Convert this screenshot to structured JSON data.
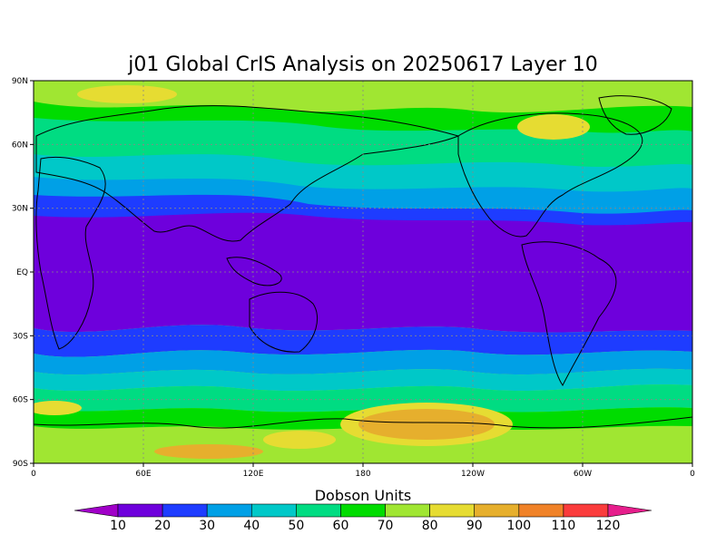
{
  "title": "j01 Global CrIS Analysis on 20250617 Layer 10",
  "map": {
    "lat_ticks": [
      "90N",
      "60N",
      "30N",
      "EQ",
      "30S",
      "60S",
      "90S"
    ],
    "lon_ticks": [
      "0",
      "60E",
      "120E",
      "180",
      "120W",
      "60W",
      "0"
    ],
    "grid": true
  },
  "colorbar": {
    "title": "Dobson Units",
    "labels": [
      "10",
      "20",
      "30",
      "40",
      "50",
      "60",
      "70",
      "80",
      "90",
      "100",
      "110",
      "120"
    ],
    "colors": [
      "#a000c8",
      "#6e00dc",
      "#1e3cff",
      "#00a0e6",
      "#00c8c8",
      "#00dc82",
      "#00dc00",
      "#a0e632",
      "#e6dc32",
      "#e6af2d",
      "#f08228",
      "#fa3c3c",
      "#e61e8c"
    ]
  }
}
